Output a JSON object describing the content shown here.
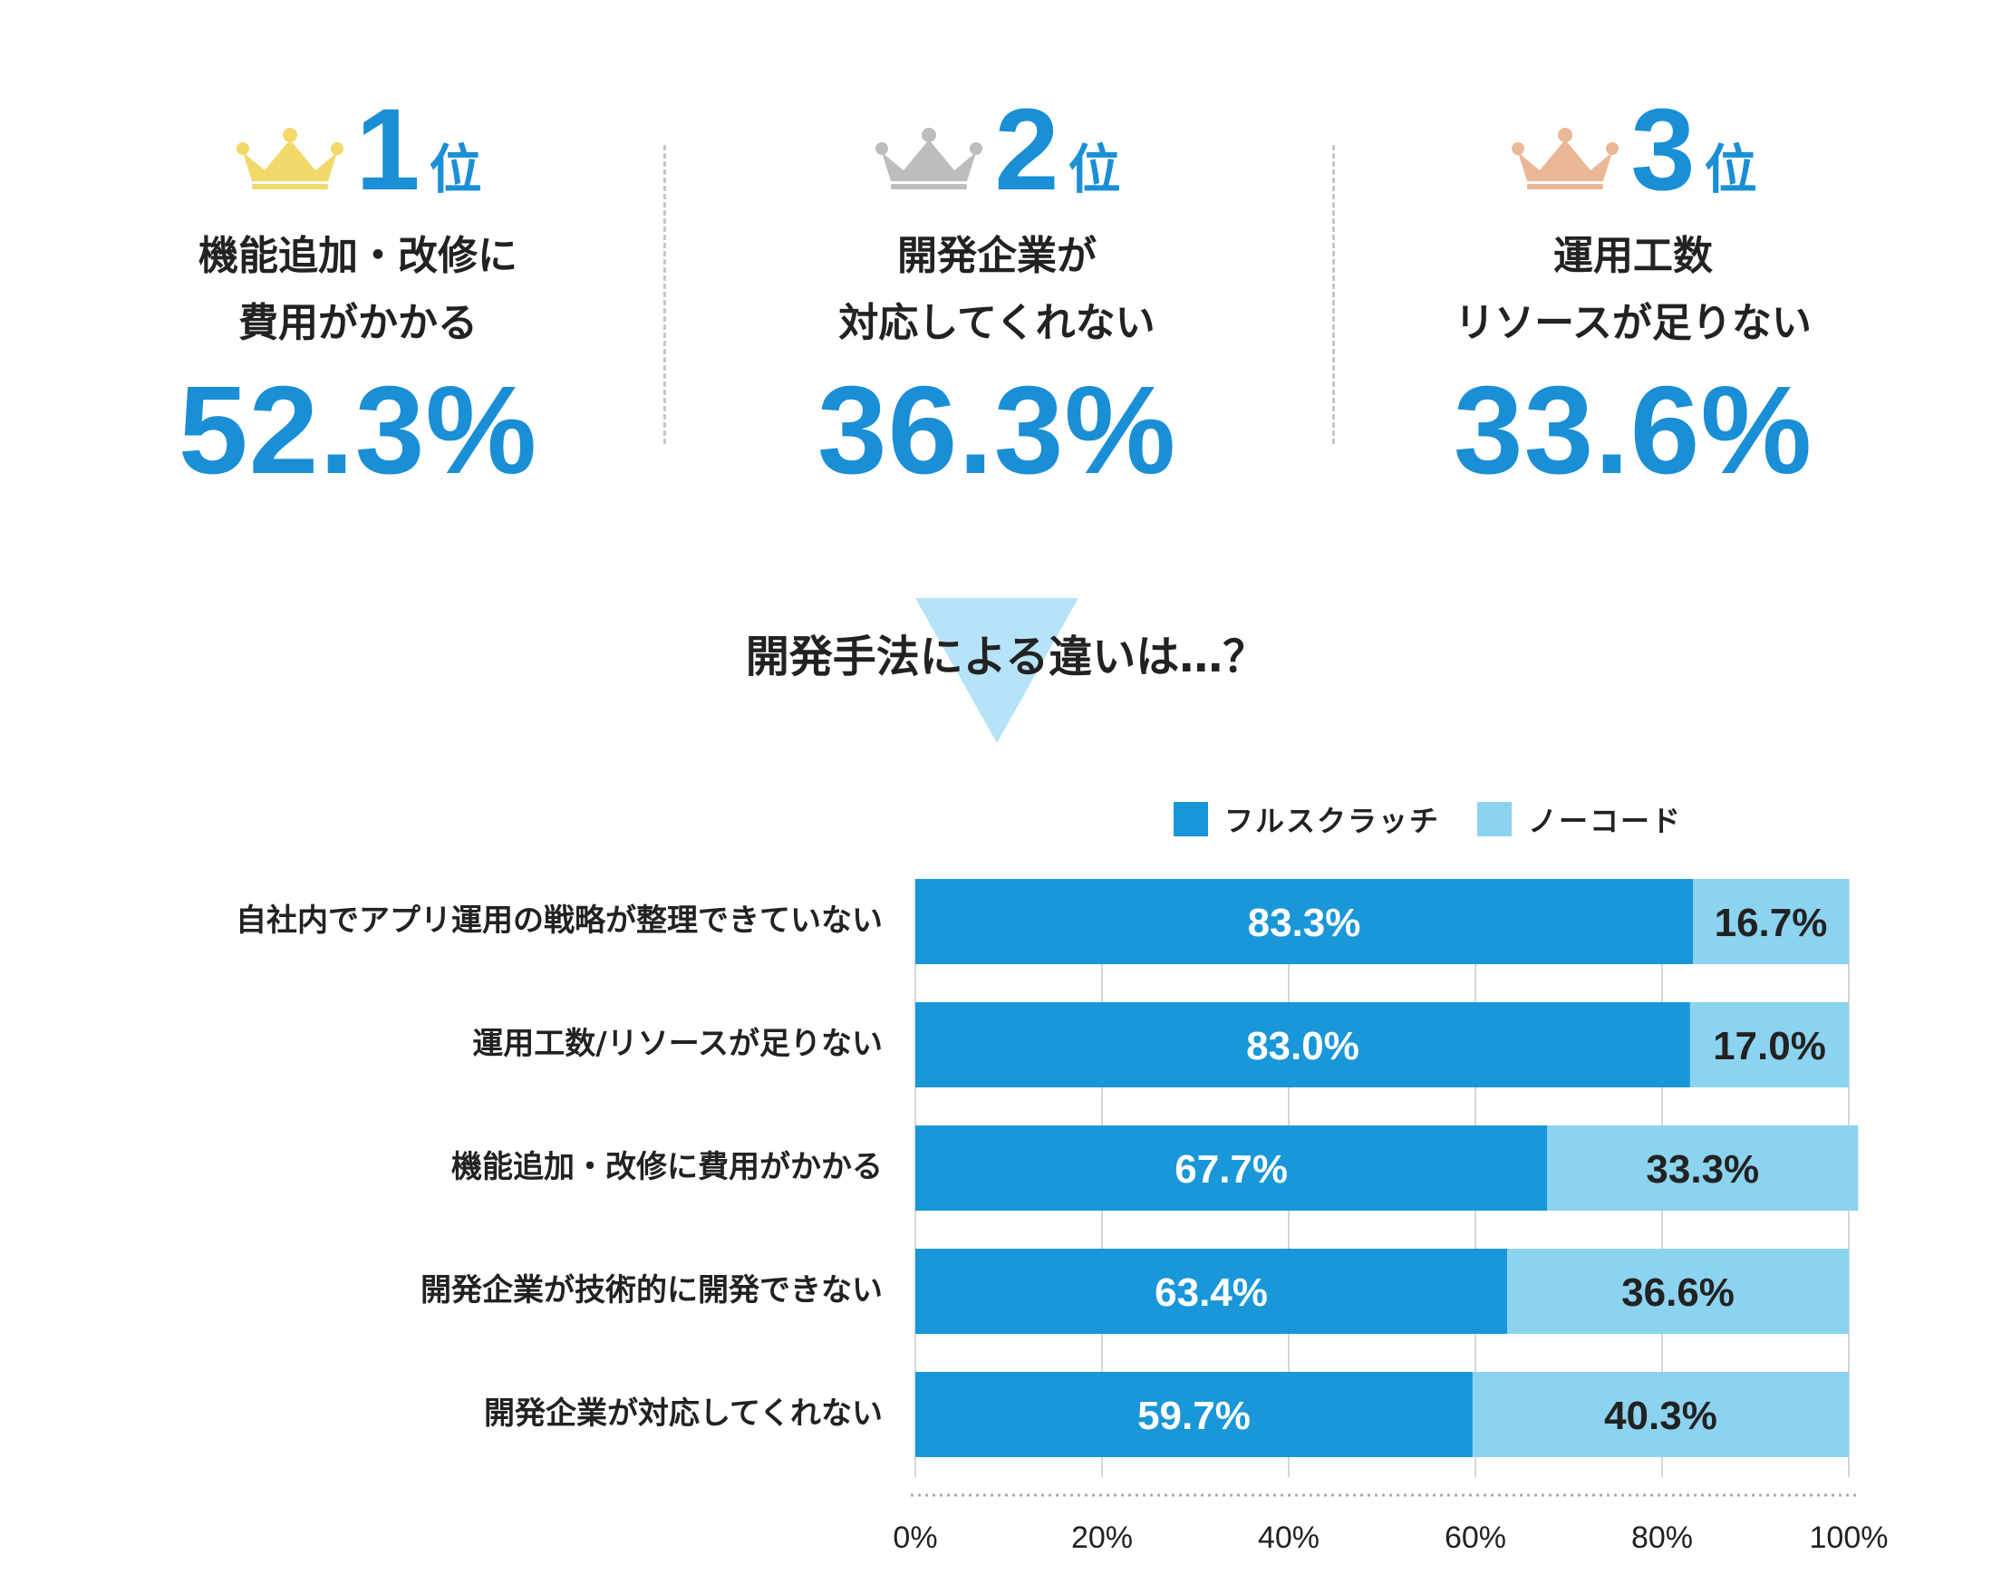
{
  "rankings": [
    {
      "rank": "1",
      "unit": "位",
      "label_line1": "機能追加・改修に",
      "label_line2": "費用がかかる",
      "percent": "52.3%",
      "crown_color": "#f3d96a"
    },
    {
      "rank": "2",
      "unit": "位",
      "label_line1": "開発企業が",
      "label_line2": "対応してくれない",
      "percent": "36.3%",
      "crown_color": "#bdbdbd"
    },
    {
      "rank": "3",
      "unit": "位",
      "label_line1": "運用工数",
      "label_line2": "リソースが足りない",
      "percent": "33.6%",
      "crown_color": "#eab896"
    }
  ],
  "subtitle": "開発手法による違いは…？",
  "colors": {
    "accent": "#1a8fd6",
    "fullscratch": "#1997d8",
    "nocode": "#8cd3f0",
    "triangle": "#b6e3f7"
  },
  "chart_data": {
    "type": "bar",
    "orientation": "horizontal",
    "stacked": true,
    "categories": [
      "自社内でアプリ運用の戦略が整理できていない",
      "運用工数/リソースが足りない",
      "機能追加・改修に費用がかかる",
      "開発企業が技術的に開発できない",
      "開発企業が対応してくれない"
    ],
    "series": [
      {
        "name": "フルスクラッチ",
        "values": [
          83.3,
          83.0,
          67.7,
          63.4,
          59.7
        ],
        "labels": [
          "83.3%",
          "83.0%",
          "67.7%",
          "63.4%",
          "59.7%"
        ],
        "color": "#1997d8"
      },
      {
        "name": "ノーコード",
        "values": [
          16.7,
          17.0,
          33.3,
          36.6,
          40.3
        ],
        "labels": [
          "16.7%",
          "17.0%",
          "33.3%",
          "36.6%",
          "40.3%"
        ],
        "color": "#8cd3f0"
      }
    ],
    "xlim": [
      0,
      100
    ],
    "xticks": [
      "0%",
      "20%",
      "40%",
      "60%",
      "80%",
      "100%"
    ],
    "xtick_values": [
      0,
      20,
      40,
      60,
      80,
      100
    ],
    "grid": true,
    "legend": "top"
  }
}
